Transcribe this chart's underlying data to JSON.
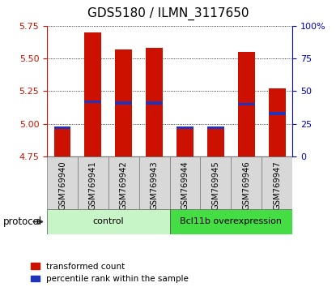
{
  "title": "GDS5180 / ILMN_3117650",
  "samples": [
    "GSM769940",
    "GSM769941",
    "GSM769942",
    "GSM769943",
    "GSM769944",
    "GSM769945",
    "GSM769946",
    "GSM769947"
  ],
  "red_values": [
    4.97,
    5.7,
    5.57,
    5.58,
    4.97,
    4.98,
    5.55,
    5.27
  ],
  "blue_values": [
    4.97,
    5.17,
    5.16,
    5.16,
    4.97,
    4.97,
    5.15,
    5.08
  ],
  "groups": [
    {
      "label": "control",
      "start": 0,
      "end": 4,
      "color": "#c8f5c8"
    },
    {
      "label": "Bcl11b overexpression",
      "start": 4,
      "end": 8,
      "color": "#44dd44"
    }
  ],
  "ymin": 4.75,
  "ymax": 5.75,
  "yticks": [
    4.75,
    5.0,
    5.25,
    5.5,
    5.75
  ],
  "y2ticks": [
    0,
    25,
    50,
    75,
    100
  ],
  "bar_color": "#cc1100",
  "blue_color": "#2233bb",
  "bar_width": 0.55,
  "protocol_label": "protocol",
  "legend_red": "transformed count",
  "legend_blue": "percentile rank within the sample",
  "left_tick_color": "#cc1100",
  "right_tick_color": "#0000cc",
  "plot_bg": "#ffffff",
  "sample_bg": "#d8d8d8",
  "title_fontsize": 11
}
